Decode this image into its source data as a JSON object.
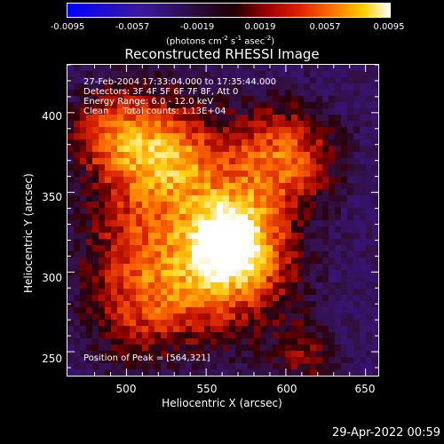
{
  "colorbar": {
    "ticks": [
      "-0.0095",
      "-0.0057",
      "-0.0019",
      "0.0019",
      "0.0057",
      "0.0095"
    ],
    "units_prefix": "(photons cm",
    "units_e1": "-2",
    "units_mid1": " s",
    "units_e2": "-1",
    "units_mid2": " asec",
    "units_e3": "-2",
    "units_suffix": ")"
  },
  "chart_data": {
    "type": "heatmap",
    "title": "Reconstructed RHESSI Image",
    "xlabel": "Heliocentric X (arcsec)",
    "ylabel": "Heliocentric Y (arcsec)",
    "xlim": [
      463,
      658
    ],
    "ylim": [
      235,
      430
    ],
    "x_ticks": [
      "500",
      "550",
      "600",
      "650"
    ],
    "y_ticks": [
      "250",
      "300",
      "350",
      "400"
    ],
    "clim": [
      -0.0095,
      0.0095
    ],
    "colormap": "blue-purple-red-orange-yellow-white",
    "sources": [
      {
        "x": 564,
        "y": 321,
        "amplitude": 1.0,
        "sigma": 9
      },
      {
        "x": 528,
        "y": 367,
        "amplitude": 0.55,
        "sigma": 10
      },
      {
        "x": 508,
        "y": 385,
        "amplitude": 0.45,
        "sigma": 12
      },
      {
        "x": 585,
        "y": 365,
        "amplitude": 0.45,
        "sigma": 12
      },
      {
        "x": 505,
        "y": 320,
        "amplitude": 0.4,
        "sigma": 12
      },
      {
        "x": 530,
        "y": 290,
        "amplitude": 0.35,
        "sigma": 12
      },
      {
        "x": 605,
        "y": 375,
        "amplitude": 0.35,
        "sigma": 10
      },
      {
        "x": 612,
        "y": 248,
        "amplitude": 0.35,
        "sigma": 7
      },
      {
        "x": 560,
        "y": 285,
        "amplitude": 0.3,
        "sigma": 12
      },
      {
        "x": 485,
        "y": 385,
        "amplitude": 0.3,
        "sigma": 8
      },
      {
        "x": 500,
        "y": 270,
        "amplitude": 0.3,
        "sigma": 10
      },
      {
        "x": 590,
        "y": 300,
        "amplitude": 0.25,
        "sigma": 10
      }
    ],
    "peak_position": [
      564,
      321
    ]
  },
  "info": {
    "line1": "27-Feb-2004 17:33:04.000 to 17:35:44.000",
    "line2": "Detectors: 3F 4F 5F 6F 7F 8F, Att 0",
    "line3": "Energy Range: 6.0 - 12.0 keV",
    "line4": "Clean     Total counts: 1.13E+04",
    "peak": "Position of Peak = [564,321]"
  },
  "timestamp": "29-Apr-2022 00:59"
}
